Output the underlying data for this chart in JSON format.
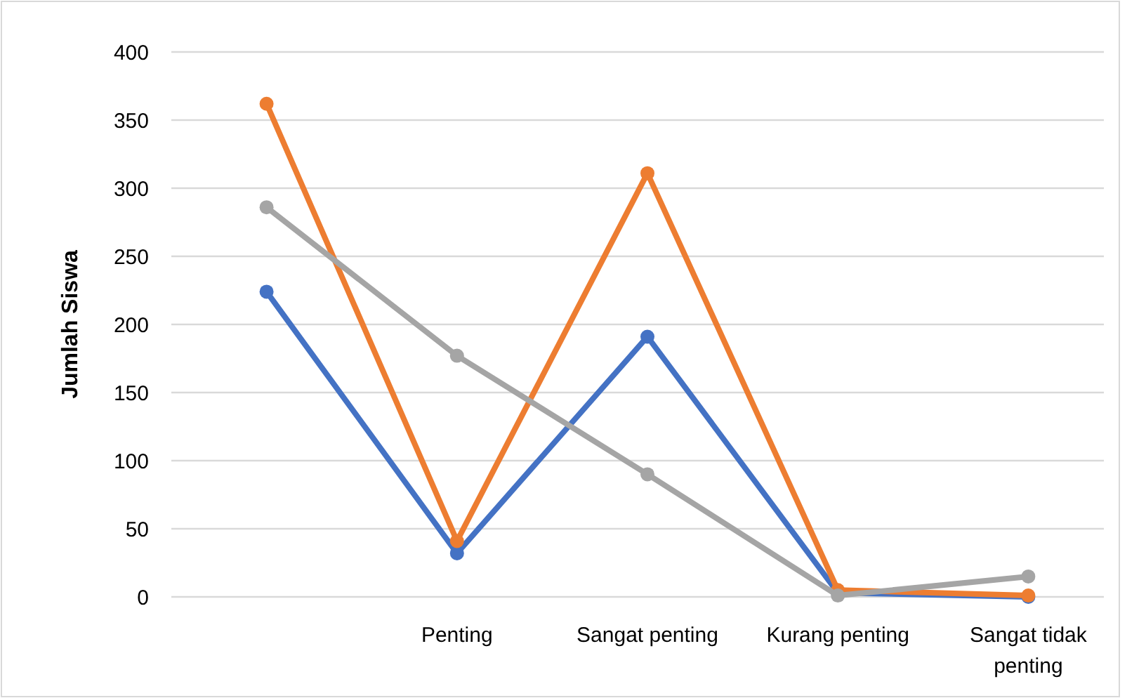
{
  "chart_data": {
    "type": "line",
    "ylabel": "Jumlah Siswa",
    "categories": [
      null,
      "Penting",
      "Sangat penting",
      "Kurang penting",
      "Sangat tidak penting"
    ],
    "series": [
      {
        "color": "#4472c4",
        "values": [
          224,
          32,
          191,
          3,
          0
        ]
      },
      {
        "color": "#ed7d31",
        "values": [
          362,
          41,
          311,
          5,
          1
        ]
      },
      {
        "color": "#a5a5a5",
        "values": [
          286,
          177,
          90,
          1,
          15
        ]
      }
    ],
    "ylim": [
      0,
      400
    ],
    "yticks": [
      0,
      50,
      100,
      150,
      200,
      250,
      300,
      350,
      400
    ],
    "grid": "y",
    "marker": "circle",
    "line_style": "solid"
  }
}
